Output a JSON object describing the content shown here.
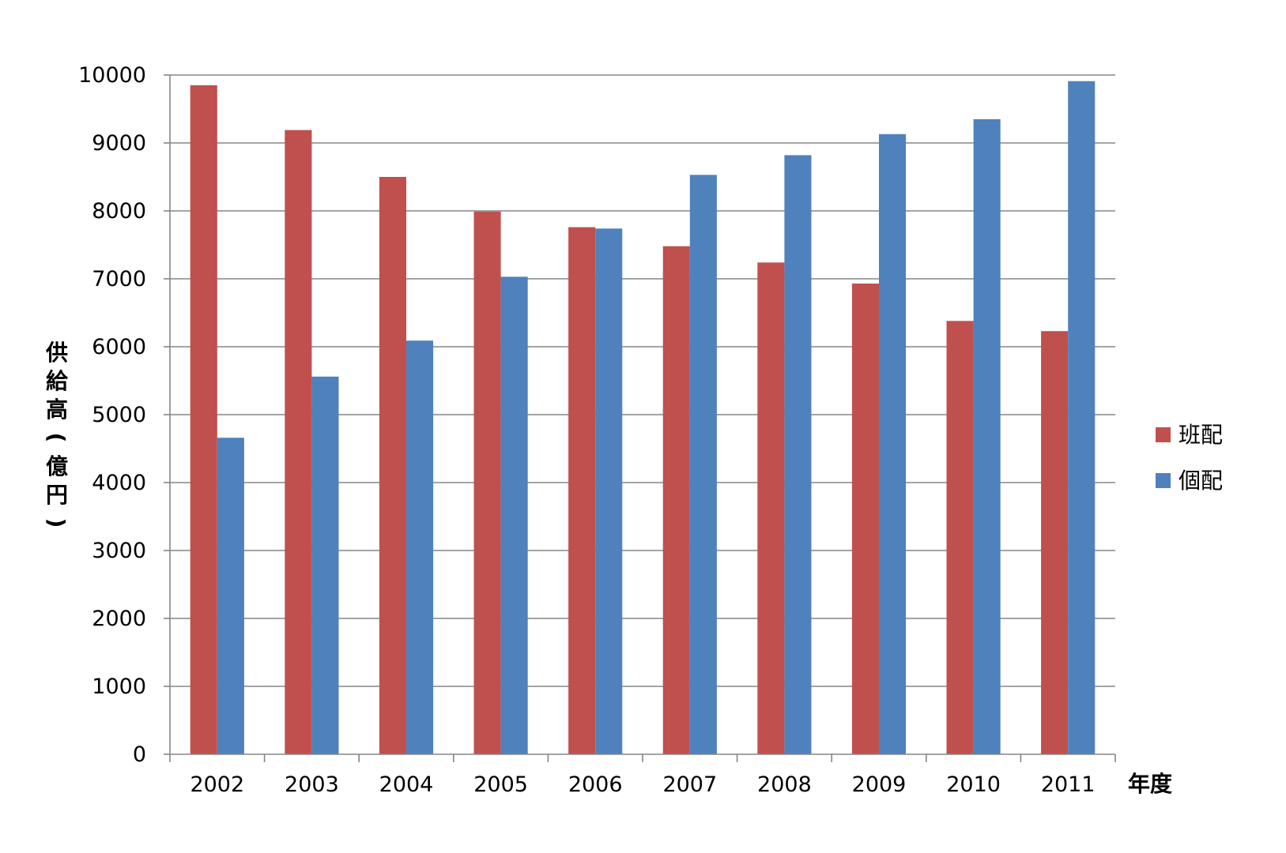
{
  "chart_data": {
    "type": "bar",
    "categories": [
      "2002",
      "2003",
      "2004",
      "2005",
      "2006",
      "2007",
      "2008",
      "2009",
      "2010",
      "2011"
    ],
    "series": [
      {
        "name": "班配",
        "color": "#c0504d",
        "values": [
          9850,
          9190,
          8500,
          7990,
          7760,
          7480,
          7240,
          6930,
          6380,
          6230
        ]
      },
      {
        "name": "個配",
        "color": "#4f81bd",
        "values": [
          4660,
          5560,
          6090,
          7030,
          7740,
          8530,
          8820,
          9130,
          9350,
          9910
        ]
      }
    ],
    "xlabel": "年度",
    "ylabel": "供給高(億円)",
    "ylim": [
      0,
      10000
    ],
    "yticks": [
      "0",
      "1000",
      "2000",
      "3000",
      "4000",
      "5000",
      "6000",
      "7000",
      "8000",
      "9000",
      "10000"
    ],
    "grid": true,
    "legend_position": "right"
  }
}
